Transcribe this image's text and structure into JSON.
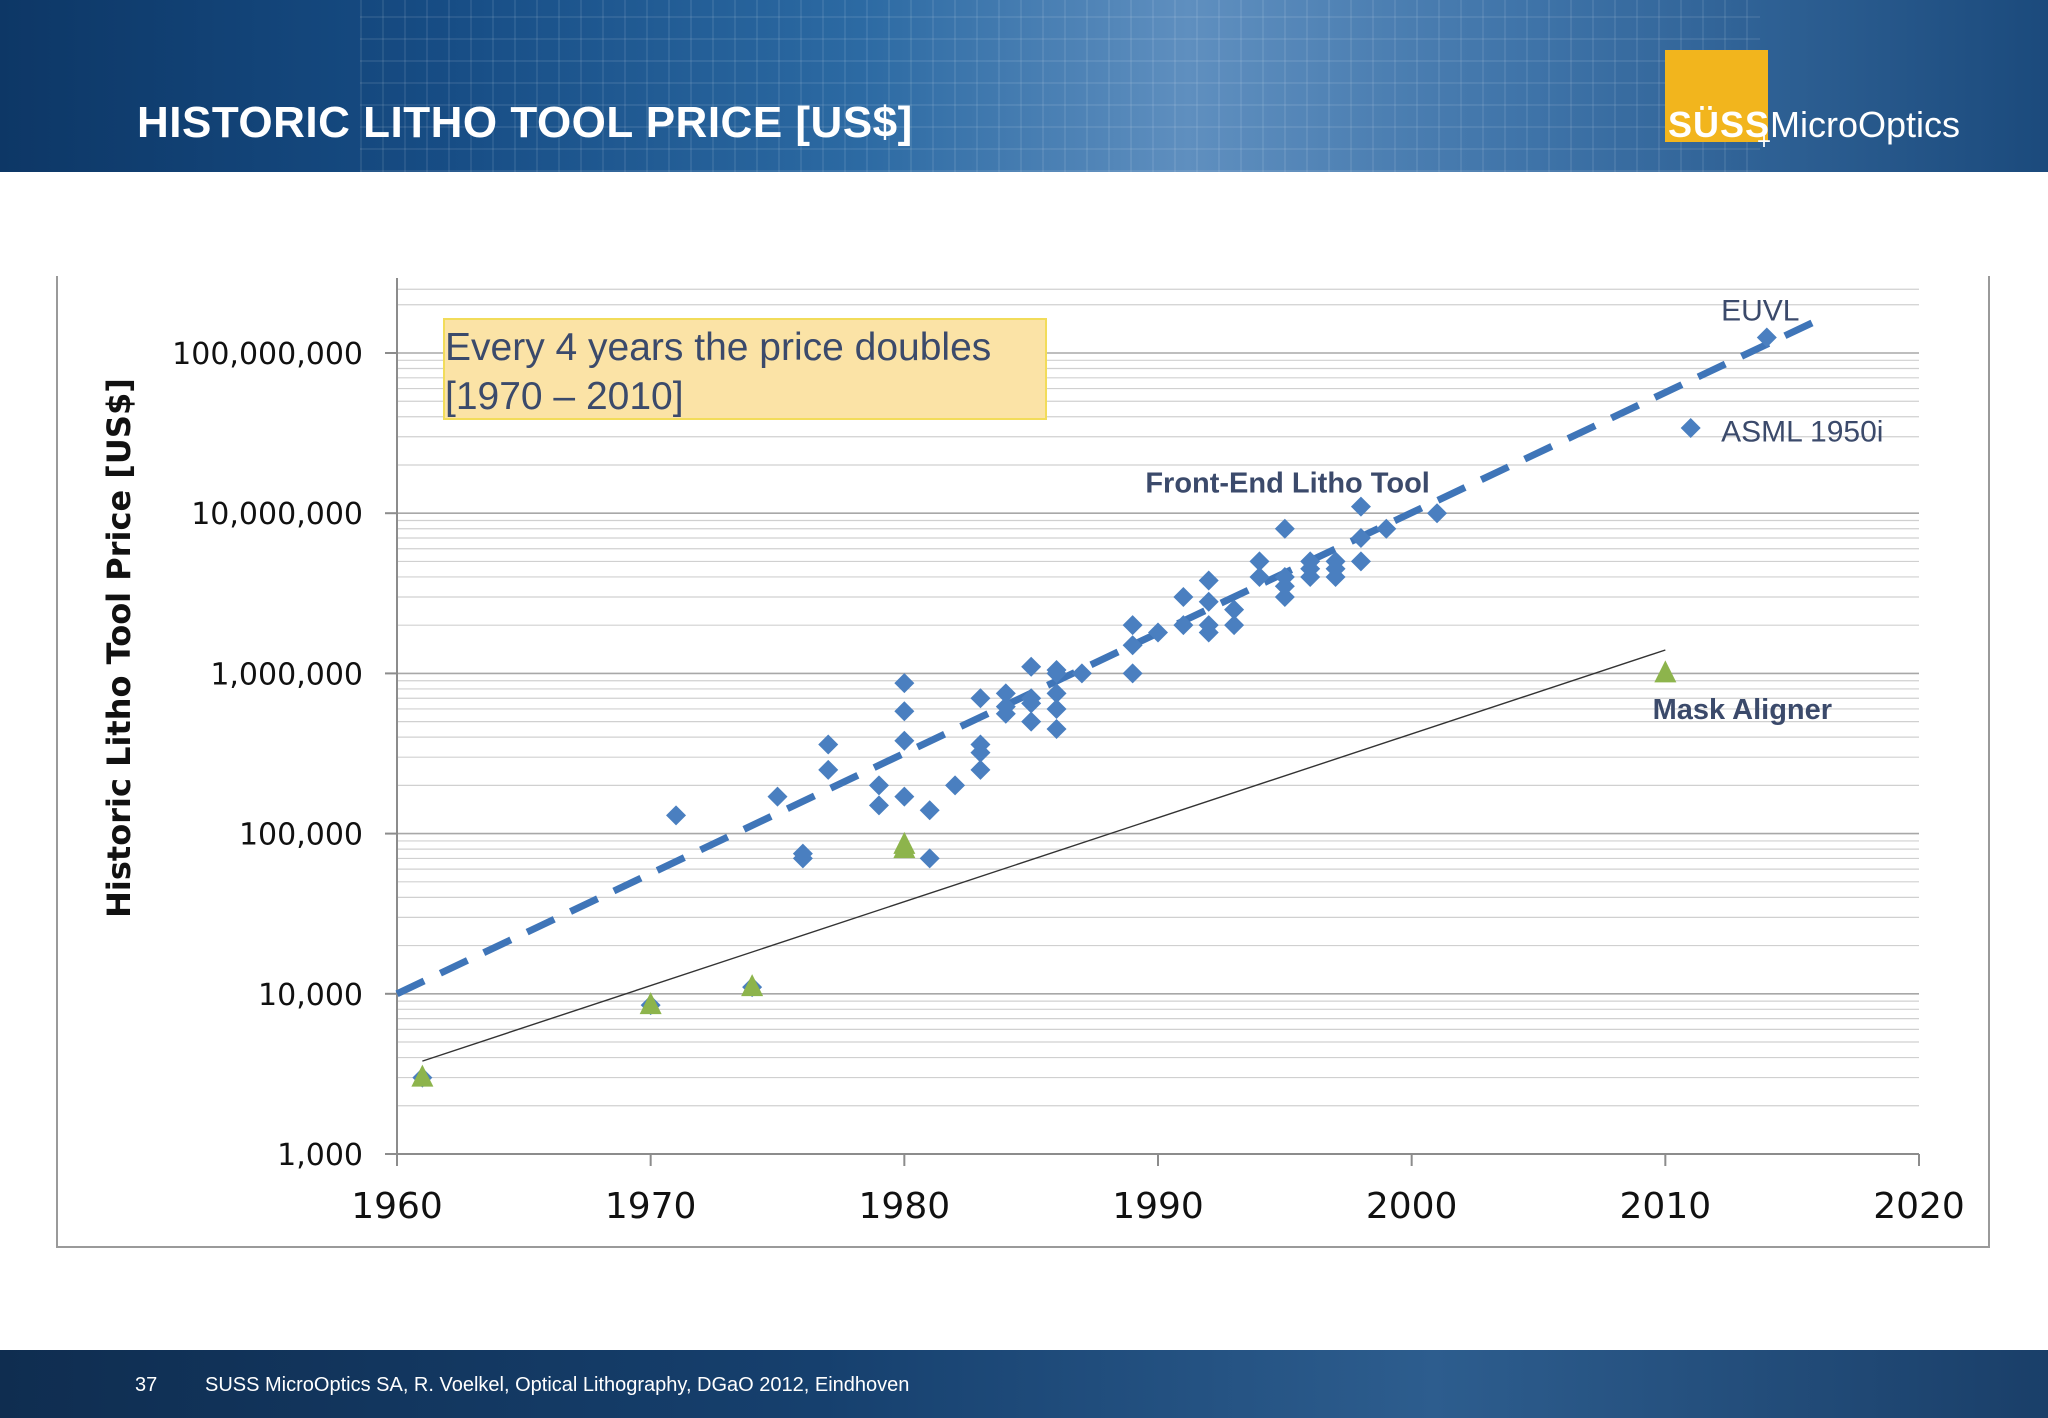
{
  "header": {
    "title": "HISTORIC LITHO TOOL PRICE [US$]",
    "logo_brand": "SÜSS",
    "logo_product": "MicroOptics",
    "logo_plus": "+"
  },
  "colors": {
    "front_end": "#4a7fc0",
    "mask_aligner": "#8db44c",
    "trend_line": "#3f75b8",
    "grid": "#bdbdbd",
    "label_dark": "#3b4a6b"
  },
  "callout": {
    "line1": "Every 4 years the price doubles",
    "line2": "[1970 – 2010]"
  },
  "chart_data": {
    "type": "scatter",
    "title": "",
    "ylabel": "Historic Litho Tool Price [US$]",
    "xlabel": "",
    "xlim": [
      1960,
      2020
    ],
    "ylim": [
      1000,
      300000000
    ],
    "yscale": "log",
    "x_ticks": [
      1960,
      1970,
      1980,
      1990,
      2000,
      2010,
      2020
    ],
    "y_ticks": [
      1000,
      10000,
      100000,
      1000000,
      10000000,
      100000000
    ],
    "y_tick_labels": [
      "1,000",
      "10,000",
      "100,000",
      "1,000,000",
      "10,000,000",
      "100,000,000"
    ],
    "grid": true,
    "series": [
      {
        "name": "Front-End Litho Tool",
        "marker": "diamond",
        "points": [
          [
            1961,
            3000
          ],
          [
            1970,
            8500
          ],
          [
            1971,
            130000
          ],
          [
            1974,
            11000
          ],
          [
            1975,
            170000
          ],
          [
            1976,
            70000
          ],
          [
            1976,
            75000
          ],
          [
            1977,
            250000
          ],
          [
            1977,
            360000
          ],
          [
            1979,
            150000
          ],
          [
            1979,
            200000
          ],
          [
            1980,
            170000
          ],
          [
            1980,
            380000
          ],
          [
            1980,
            580000
          ],
          [
            1980,
            870000
          ],
          [
            1981,
            70000
          ],
          [
            1981,
            140000
          ],
          [
            1982,
            200000
          ],
          [
            1983,
            250000
          ],
          [
            1983,
            320000
          ],
          [
            1983,
            360000
          ],
          [
            1983,
            700000
          ],
          [
            1984,
            560000
          ],
          [
            1984,
            620000
          ],
          [
            1984,
            750000
          ],
          [
            1985,
            500000
          ],
          [
            1985,
            650000
          ],
          [
            1985,
            700000
          ],
          [
            1985,
            1100000
          ],
          [
            1986,
            450000
          ],
          [
            1986,
            600000
          ],
          [
            1986,
            750000
          ],
          [
            1986,
            1000000
          ],
          [
            1986,
            1050000
          ],
          [
            1987,
            1000000
          ],
          [
            1989,
            1000000
          ],
          [
            1989,
            1500000
          ],
          [
            1989,
            2000000
          ],
          [
            1990,
            1800000
          ],
          [
            1991,
            2000000
          ],
          [
            1991,
            3000000
          ],
          [
            1992,
            1800000
          ],
          [
            1992,
            2000000
          ],
          [
            1992,
            2800000
          ],
          [
            1992,
            3800000
          ],
          [
            1993,
            2000000
          ],
          [
            1993,
            2500000
          ],
          [
            1994,
            4000000
          ],
          [
            1994,
            5000000
          ],
          [
            1995,
            3000000
          ],
          [
            1995,
            3500000
          ],
          [
            1995,
            4000000
          ],
          [
            1995,
            8000000
          ],
          [
            1996,
            4000000
          ],
          [
            1996,
            4500000
          ],
          [
            1996,
            5000000
          ],
          [
            1997,
            4000000
          ],
          [
            1997,
            4500000
          ],
          [
            1997,
            5000000
          ],
          [
            1998,
            5000000
          ],
          [
            1998,
            7000000
          ],
          [
            1998,
            11000000
          ],
          [
            1999,
            8000000
          ],
          [
            2001,
            10000000
          ],
          [
            2011,
            34000000
          ],
          [
            2014,
            125000000
          ]
        ]
      },
      {
        "name": "Mask Aligner",
        "marker": "triangle",
        "points": [
          [
            1961,
            3000
          ],
          [
            1970,
            8500
          ],
          [
            1974,
            11000
          ],
          [
            1980,
            80000
          ],
          [
            1980,
            85000
          ],
          [
            2010,
            1000000
          ]
        ]
      }
    ],
    "trendlines": [
      {
        "name": "Front-End trend",
        "style": "dashed",
        "from": [
          1960,
          10000
        ],
        "to": [
          2016,
          160000000
        ]
      },
      {
        "name": "Mask Aligner trend",
        "style": "solid",
        "from": [
          1961,
          3800
        ],
        "to": [
          2010,
          1400000
        ]
      }
    ],
    "annotations": [
      {
        "text": "EUVL",
        "x": 2012.2,
        "y": 160000000
      },
      {
        "text": "ASML 1950i",
        "x": 2012.2,
        "y": 28000000
      },
      {
        "text": "Front-End Litho Tool",
        "x": 1989.5,
        "y": 13500000
      },
      {
        "text": "Mask Aligner",
        "x": 2009.5,
        "y": 520000
      }
    ]
  },
  "footer": {
    "page": "37",
    "text": "SUSS MicroOptics SA, R. Voelkel, Optical Lithography, DGaO 2012, Eindhoven"
  }
}
